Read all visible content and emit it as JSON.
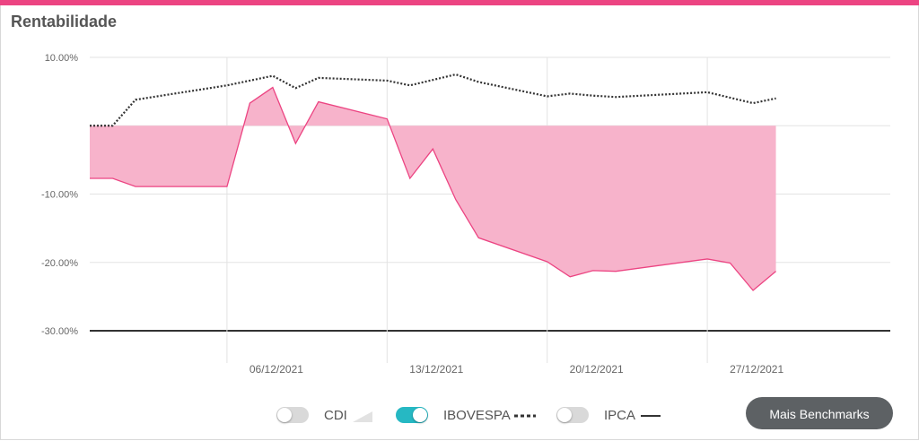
{
  "title": "Rentabilidade",
  "button_label": "Mais Benchmarks",
  "legend": [
    {
      "label": "CDI",
      "on": false
    },
    {
      "label": "IBOVESPA",
      "on": true
    },
    {
      "label": "IPCA",
      "on": false
    }
  ],
  "colors": {
    "accent": "#ec4482",
    "area_fill": "#f7b3cb",
    "toggle_on": "#26b8c3",
    "benchmark_line": "#333333"
  },
  "chart_data": {
    "type": "area",
    "ylim": [
      -30,
      10
    ],
    "y_ticks": [
      {
        "value": 10,
        "label": "10.00%"
      },
      {
        "value": -10,
        "label": "-10.00%"
      },
      {
        "value": -20,
        "label": "-20.00%"
      },
      {
        "value": -30,
        "label": "-30.00%"
      }
    ],
    "x_ticks": [
      {
        "date": "2021-12-06",
        "label": "06/12/2021"
      },
      {
        "date": "2021-12-13",
        "label": "13/12/2021"
      },
      {
        "date": "2021-12-20",
        "label": "20/12/2021"
      },
      {
        "date": "2021-12-27",
        "label": "27/12/2021"
      }
    ],
    "grid": true,
    "series": [
      {
        "name": "",
        "style": "area",
        "points": [
          [
            "2021-11-30",
            -7.7
          ],
          [
            "2021-12-01",
            -7.7
          ],
          [
            "2021-12-02",
            -8.9
          ],
          [
            "2021-12-06",
            -8.9
          ],
          [
            "2021-12-07",
            3.3
          ],
          [
            "2021-12-08",
            5.6
          ],
          [
            "2021-12-09",
            -2.6
          ],
          [
            "2021-12-10",
            3.5
          ],
          [
            "2021-12-13",
            1.0
          ],
          [
            "2021-12-14",
            -7.7
          ],
          [
            "2021-12-15",
            -3.4
          ],
          [
            "2021-12-16",
            -10.8
          ],
          [
            "2021-12-17",
            -16.4
          ],
          [
            "2021-12-20",
            -19.9
          ],
          [
            "2021-12-21",
            -22.1
          ],
          [
            "2021-12-22",
            -21.2
          ],
          [
            "2021-12-23",
            -21.3
          ],
          [
            "2021-12-27",
            -19.5
          ],
          [
            "2021-12-28",
            -20.1
          ],
          [
            "2021-12-29",
            -24.1
          ],
          [
            "2021-12-30",
            -21.3
          ]
        ]
      },
      {
        "name": "IBOVESPA",
        "style": "dotted",
        "points": [
          [
            "2021-11-30",
            0
          ],
          [
            "2021-12-01",
            0
          ],
          [
            "2021-12-02",
            3.8
          ],
          [
            "2021-12-06",
            5.9
          ],
          [
            "2021-12-08",
            7.3
          ],
          [
            "2021-12-09",
            5.5
          ],
          [
            "2021-12-10",
            7.0
          ],
          [
            "2021-12-13",
            6.6
          ],
          [
            "2021-12-14",
            5.9
          ],
          [
            "2021-12-15",
            6.7
          ],
          [
            "2021-12-16",
            7.5
          ],
          [
            "2021-12-17",
            6.4
          ],
          [
            "2021-12-20",
            4.3
          ],
          [
            "2021-12-21",
            4.7
          ],
          [
            "2021-12-22",
            4.4
          ],
          [
            "2021-12-23",
            4.2
          ],
          [
            "2021-12-27",
            4.9
          ],
          [
            "2021-12-29",
            3.3
          ],
          [
            "2021-12-30",
            4.0
          ]
        ]
      }
    ]
  }
}
